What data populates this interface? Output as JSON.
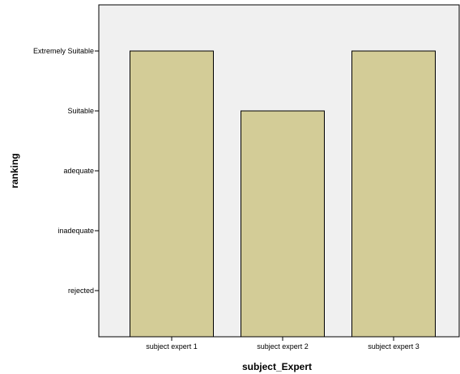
{
  "chart_data": {
    "type": "bar",
    "categories": [
      "subject expert 1",
      "subject expert 2",
      "subject expert 3"
    ],
    "y_levels": [
      "rejected",
      "inadequate",
      "adequate",
      "Suitable",
      "Extremely Suitable"
    ],
    "values": [
      5,
      4,
      5
    ],
    "xlabel": "subject_Expert",
    "ylabel": "ranking",
    "ylim": [
      0,
      6
    ],
    "grid": false,
    "legend": "none",
    "colors": {
      "bar_fill": "#d3cc97",
      "bar_stroke": "#000000",
      "plot_background": "#f0f0f0"
    }
  }
}
